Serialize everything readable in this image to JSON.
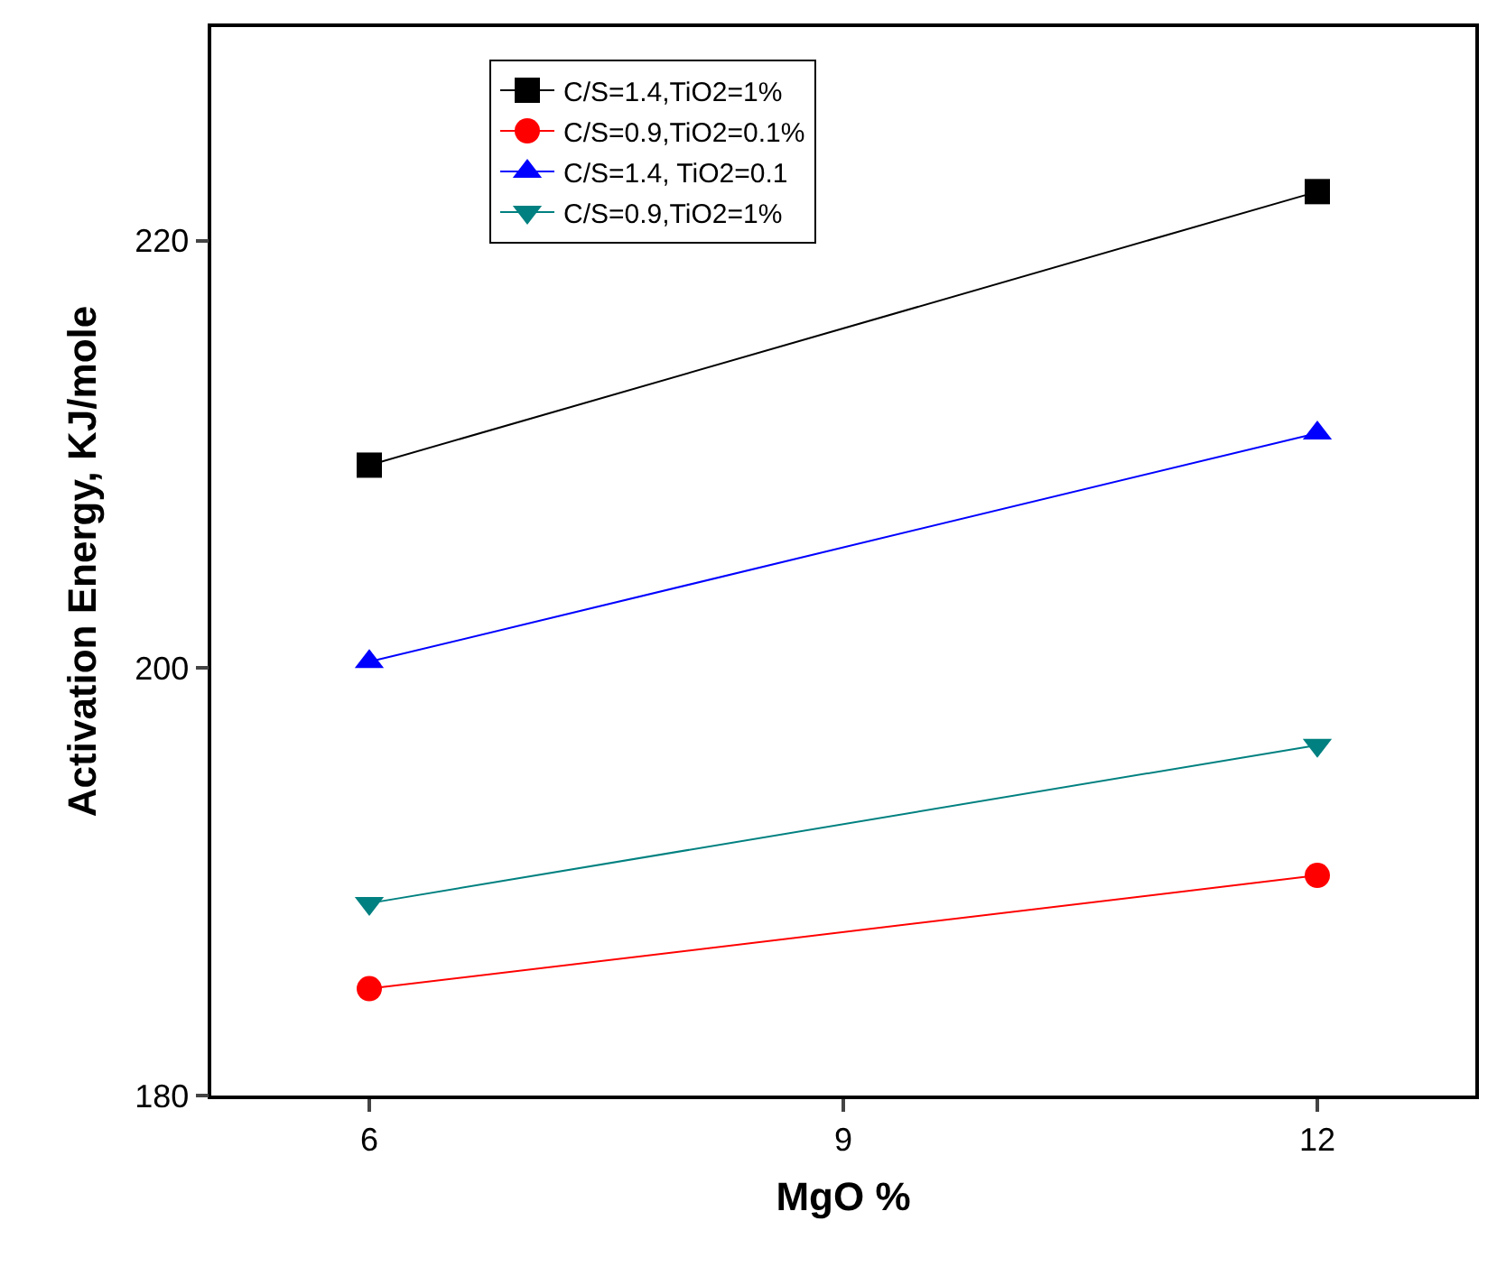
{
  "chart_data": {
    "type": "line",
    "xlabel": "MgO %",
    "ylabel": "Activation Energy, KJ/mole",
    "x": [
      6,
      12
    ],
    "xlim": [
      5,
      13
    ],
    "xticks": [
      6,
      9,
      12
    ],
    "ylim": [
      180,
      230
    ],
    "yticks": [
      180,
      200,
      220
    ],
    "legend": "top left",
    "line_style": "solid",
    "series": [
      {
        "name": "C/S=1.4,TiO2=1%",
        "color": "#000000",
        "marker": "square",
        "values": [
          209.5,
          222.3
        ]
      },
      {
        "name": "C/S=0.9,TiO2=0.1%",
        "color": "#ff0000",
        "marker": "circle",
        "values": [
          185.0,
          190.3
        ]
      },
      {
        "name": "C/S=1.4, TiO2=0.1",
        "color": "#0000ff",
        "marker": "triangle",
        "values": [
          200.3,
          211.0
        ]
      },
      {
        "name": "C/S=0.9,TiO2=1%",
        "color": "#008080",
        "marker": "triangle-down",
        "values": [
          189.0,
          196.4
        ]
      }
    ]
  }
}
